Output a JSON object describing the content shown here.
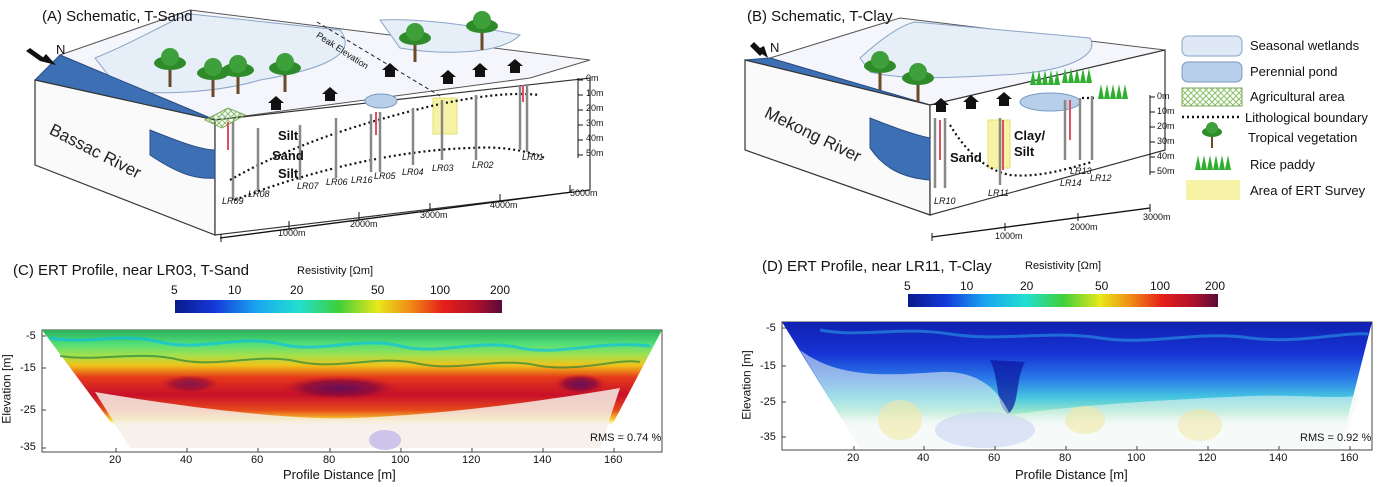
{
  "panels": {
    "a": {
      "title": "(A) Schematic, T-Sand",
      "river": "Bassac River",
      "north": "N",
      "peak": "Peak Elevation",
      "layers": [
        "Silt",
        "Sand",
        "Silt"
      ],
      "wells": [
        "LR01",
        "LR02",
        "LR03",
        "LR04",
        "LR05",
        "LR16",
        "LR06",
        "LR07",
        "LR08",
        "LR09"
      ],
      "depth_ticks": [
        "0m",
        "10m",
        "20m",
        "30m",
        "40m",
        "50m"
      ],
      "distance_ticks": [
        "1000m",
        "2000m",
        "3000m",
        "4000m",
        "5000m"
      ]
    },
    "b": {
      "title": "(B) Schematic, T-Clay",
      "river": "Mekong River",
      "north": "N",
      "layers": [
        "Sand",
        "Clay/",
        "Silt"
      ],
      "wells": [
        "LR10",
        "LR11",
        "LR13",
        "LR14",
        "LR12"
      ],
      "depth_ticks": [
        "0m",
        "10m",
        "20m",
        "30m",
        "40m",
        "50m"
      ],
      "distance_ticks": [
        "1000m",
        "2000m",
        "3000m"
      ]
    },
    "c": {
      "title": "(C) ERT Profile, near LR03, T-Sand",
      "rms": "RMS = 0.74 %"
    },
    "d": {
      "title": "(D) ERT Profile, near LR11, T-Clay",
      "rms": "RMS = 0.92 %"
    }
  },
  "legend": {
    "items": [
      {
        "label": "Seasonal wetlands",
        "color": "#dfe9f6"
      },
      {
        "label": "Perennial pond",
        "color": "#b8cfe9"
      },
      {
        "label": "Agricultural area",
        "color": "#d8efc4"
      },
      {
        "label": "Lithological boundary",
        "color": "#000000"
      },
      {
        "label": "Tropical vegetation",
        "color": "#3a8a2a"
      },
      {
        "label": "Rice paddy",
        "color": "#2fae2f"
      },
      {
        "label": "Area of ERT Survey",
        "color": "#f7f3a6"
      }
    ]
  },
  "colorbar": {
    "title": "Resistivity [Ωm]",
    "ticks": [
      "5",
      "10",
      "20",
      "50",
      "100",
      "200"
    ]
  },
  "ert_axes": {
    "ylabel": "Elevation [m]",
    "xlabel": "Profile Distance [m]",
    "yticks": [
      "-5",
      "-15",
      "-25",
      "-35"
    ],
    "xticks": [
      "20",
      "40",
      "60",
      "80",
      "100",
      "120",
      "140",
      "160"
    ]
  }
}
